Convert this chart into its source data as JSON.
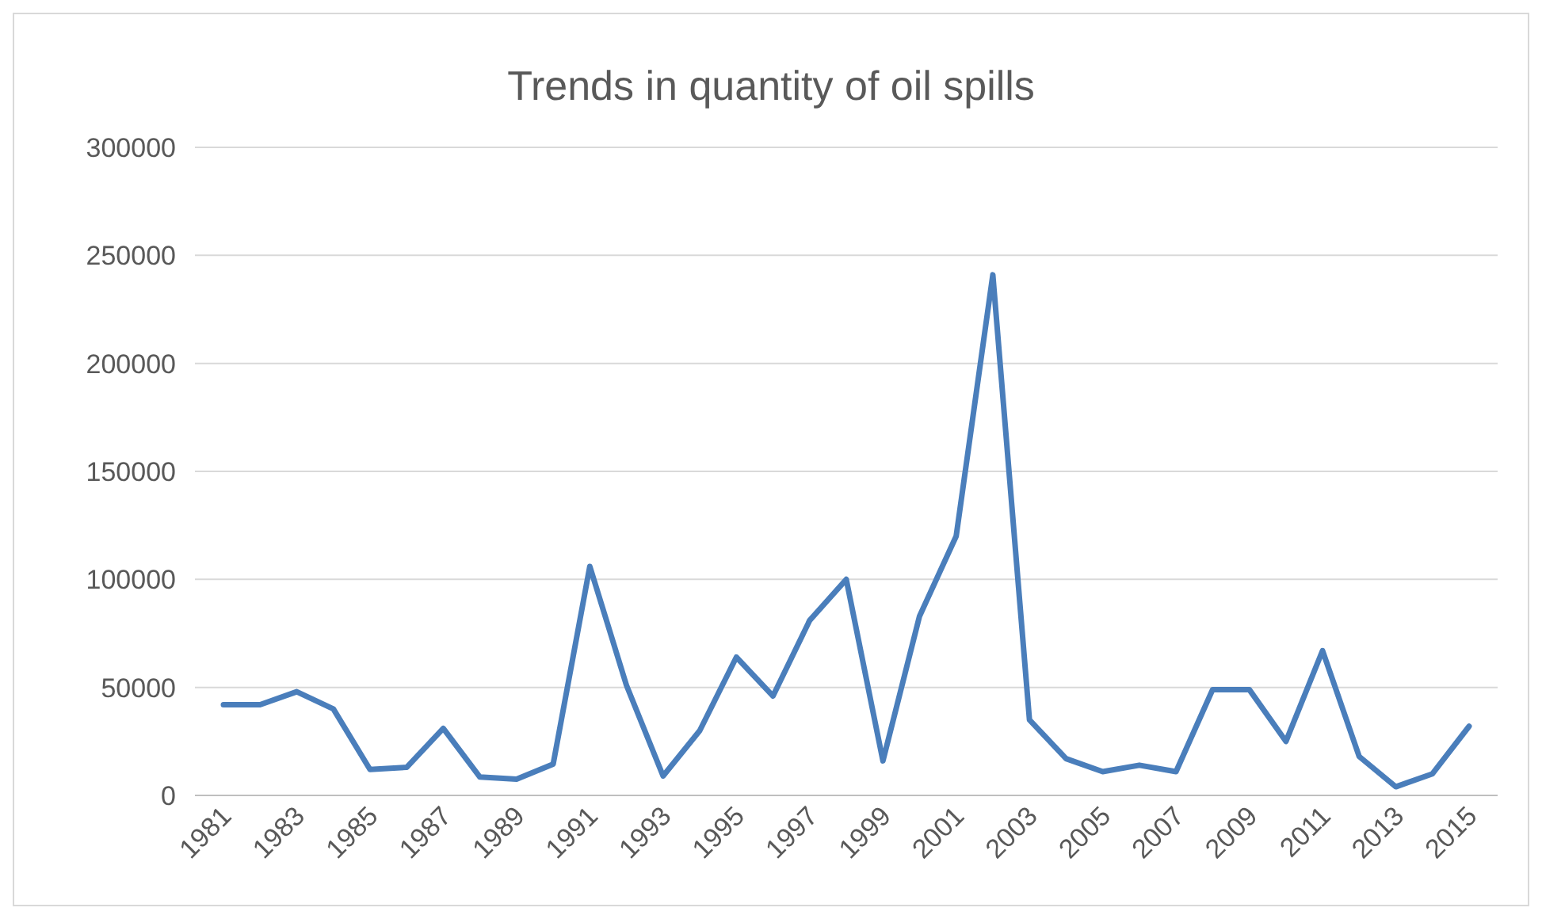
{
  "chart_data": {
    "type": "line",
    "title": "Trends in quantity of oil spills",
    "categories": [
      "1981",
      null,
      "1983",
      null,
      "1985",
      null,
      "1987",
      null,
      "1989",
      null,
      "1991",
      null,
      "1993",
      null,
      "1995",
      null,
      "1997",
      null,
      "1999",
      null,
      "2001",
      null,
      "2003",
      null,
      "2005",
      null,
      "2007",
      null,
      "2009",
      null,
      "2011",
      null,
      "2013",
      null,
      "2015"
    ],
    "series": [
      {
        "color": "#4a7ebb",
        "values": [
          42000,
          42000,
          48000,
          40000,
          12000,
          13000,
          31000,
          8500,
          7500,
          14500,
          106000,
          51000,
          9000,
          30000,
          64000,
          46000,
          81000,
          100000,
          16000,
          83000,
          120000,
          241000,
          35000,
          17000,
          11000,
          14000,
          11000,
          49000,
          49000,
          25000,
          67000,
          18000,
          4000,
          10000,
          32000
        ]
      }
    ],
    "ylim": [
      0,
      300000
    ],
    "yticks": [
      0,
      50000,
      100000,
      150000,
      200000,
      250000,
      300000
    ],
    "grid": "y",
    "marker": "none",
    "line_style": "solid"
  }
}
